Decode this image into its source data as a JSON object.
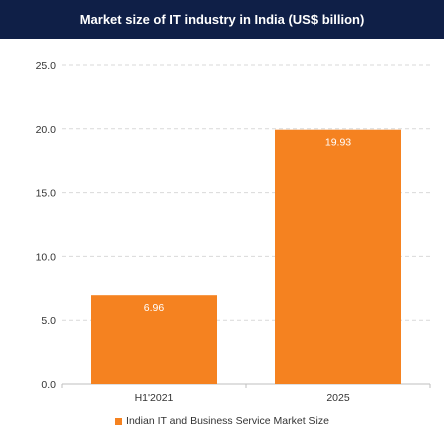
{
  "chart_data": {
    "type": "bar",
    "title": "Market size of IT industry in India (US$ billion)",
    "categories": [
      "H1'2021",
      "2025"
    ],
    "series": [
      {
        "name": "Indian IT and Business Service Market Size",
        "values": [
          6.96,
          19.93
        ],
        "data_labels": [
          "6.96",
          "19.93"
        ]
      }
    ],
    "xlabel": "",
    "ylabel": "",
    "ylim": [
      0,
      25
    ],
    "yticks": [
      "0.0",
      "5.0",
      "10.0",
      "15.0",
      "20.0",
      "25.0"
    ],
    "grid": true,
    "legend_position": "bottom",
    "colors": {
      "bar": "#f58220",
      "title_background": "#0f1f47",
      "title_text": "#ffffff",
      "data_label": "#ffffff",
      "gridline": "#d9d9d9",
      "axis_text": "#333333"
    }
  }
}
